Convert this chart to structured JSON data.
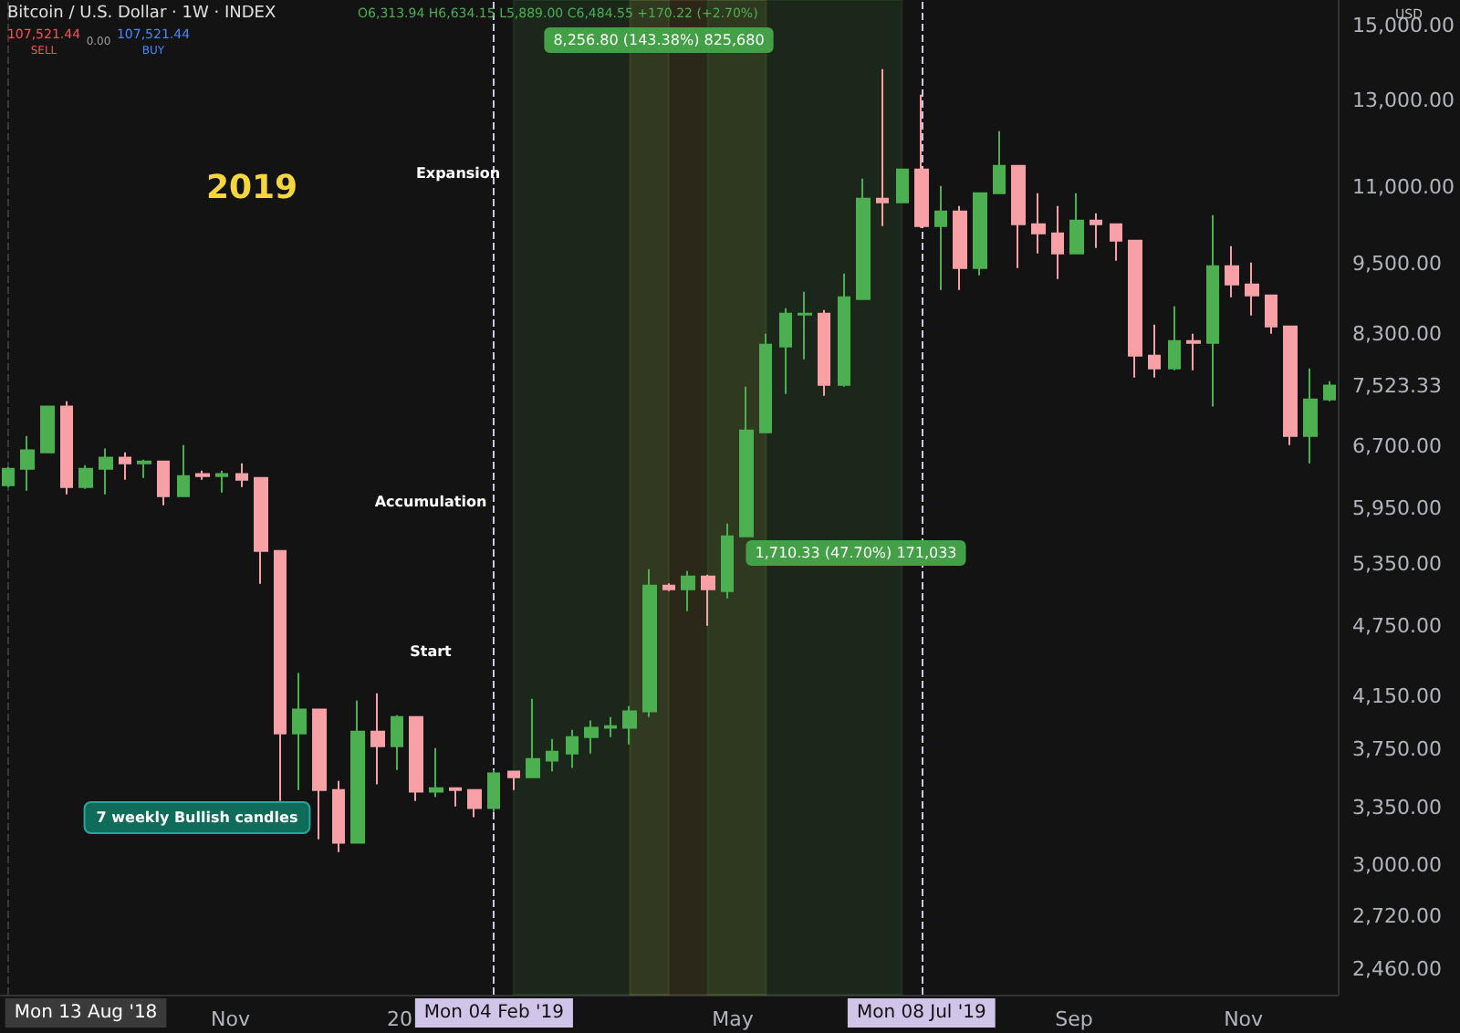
{
  "chart_data": {
    "type": "candlestick",
    "title": "Bitcoin / U.S. Dollar · 1W · INDEX",
    "subtitle": "O6,313.94 H6,634.15 L5,889.00 C6,484.55 +170.22 (+2.70%)",
    "annotations": [
      "2019",
      "Expansion",
      "Accumulation",
      "Start",
      "8,256.80 (143.38%) 825,680",
      "1,710.33 (47.70%) 171,033",
      "7 weekly Bullish candles",
      "107,521.44",
      "SELL",
      "0.00",
      "107,521.44",
      "BUY",
      "USD"
    ],
    "x": [
      "2018-08-13",
      "2018-08-20",
      "2018-08-27",
      "2018-09-03",
      "2018-09-10",
      "2018-09-17",
      "2018-09-24",
      "2018-10-01",
      "2018-10-08",
      "2018-10-15",
      "2018-10-22",
      "2018-10-29",
      "2018-11-05",
      "2018-11-12",
      "2018-11-19",
      "2018-11-26",
      "2018-12-03",
      "2018-12-10",
      "2018-12-17",
      "2018-12-24",
      "2018-12-31",
      "2019-01-07",
      "2019-01-14",
      "2019-01-21",
      "2019-01-28",
      "2019-02-04",
      "2019-02-11",
      "2019-02-18",
      "2019-02-25",
      "2019-03-04",
      "2019-03-11",
      "2019-03-18",
      "2019-03-25",
      "2019-04-01",
      "2019-04-08",
      "2019-04-15",
      "2019-04-22",
      "2019-04-29",
      "2019-05-06",
      "2019-05-13",
      "2019-05-20",
      "2019-05-27",
      "2019-06-03",
      "2019-06-10",
      "2019-06-17",
      "2019-06-24",
      "2019-07-01",
      "2019-07-08",
      "2019-07-15",
      "2019-07-22",
      "2019-07-29",
      "2019-08-05",
      "2019-08-12",
      "2019-08-19",
      "2019-08-26",
      "2019-09-02",
      "2019-09-09",
      "2019-09-16",
      "2019-09-23",
      "2019-09-30",
      "2019-10-07",
      "2019-10-14",
      "2019-10-21",
      "2019-10-28",
      "2019-11-04",
      "2019-11-11",
      "2019-11-18",
      "2019-11-25",
      "2019-12-02"
    ],
    "ohlc": [
      [
        6216,
        6438,
        6195,
        6415
      ],
      [
        6415,
        6832,
        6151,
        6645
      ],
      [
        6621,
        7226,
        6621,
        7226
      ],
      [
        7226,
        7302,
        6109,
        6195
      ],
      [
        6195,
        6460,
        6173,
        6415
      ],
      [
        6415,
        6668,
        6109,
        6552
      ],
      [
        6552,
        6621,
        6282,
        6483
      ],
      [
        6483,
        6529,
        6304,
        6506
      ],
      [
        6506,
        6506,
        5982,
        6088
      ],
      [
        6088,
        6714,
        6088,
        6326
      ],
      [
        6349,
        6393,
        6282,
        6326
      ],
      [
        6326,
        6393,
        6130,
        6349
      ],
      [
        6349,
        6483,
        6195,
        6282
      ],
      [
        6304,
        6304,
        5147,
        5481
      ],
      [
        5481,
        5481,
        3395,
        3864
      ],
      [
        3864,
        4337,
        3467,
        4044
      ],
      [
        4044,
        4044,
        3154,
        3467
      ],
      [
        3467,
        3528,
        3078,
        3133
      ],
      [
        3133,
        4115,
        3133,
        3877
      ],
      [
        3877,
        4173,
        3504,
        3770
      ],
      [
        3770,
        4001,
        3603,
        3987
      ],
      [
        3987,
        3987,
        3395,
        3455
      ],
      [
        3455,
        3757,
        3419,
        3479
      ],
      [
        3479,
        3479,
        3359,
        3467
      ],
      [
        3467,
        3467,
        3290,
        3348
      ],
      [
        3348,
        3603,
        3324,
        3578
      ],
      [
        3591,
        3591,
        3467,
        3553
      ],
      [
        3553,
        4129,
        3553,
        3679
      ],
      [
        3667,
        3823,
        3591,
        3731
      ],
      [
        3718,
        3891,
        3616,
        3836
      ],
      [
        3836,
        3960,
        3718,
        3905
      ],
      [
        3905,
        3987,
        3836,
        3918
      ],
      [
        3905,
        4072,
        3783,
        4030
      ],
      [
        4030,
        5292,
        3987,
        5129
      ],
      [
        5129,
        5150,
        5075,
        5093
      ],
      [
        5093,
        5274,
        4884,
        5219
      ],
      [
        5219,
        5238,
        4749,
        5093
      ],
      [
        5075,
        5776,
        5005,
        5636
      ],
      [
        5636,
        7508,
        5636,
        6903
      ],
      [
        6880,
        8310,
        6880,
        8137
      ],
      [
        8109,
        8727,
        7404,
        8635
      ],
      [
        8620,
        9005,
        7913,
        8635
      ],
      [
        8635,
        8696,
        7378,
        7534
      ],
      [
        7534,
        9326,
        7508,
        8912
      ],
      [
        8880,
        11185,
        8880,
        10763
      ],
      [
        10763,
        13796,
        10213,
        10688
      ],
      [
        10688,
        11383,
        10688,
        11383
      ],
      [
        11383,
        13137,
        10178,
        10213
      ],
      [
        10213,
        11031,
        9038,
        10503
      ],
      [
        10503,
        10613,
        9038,
        9424
      ],
      [
        9424,
        10877,
        9294,
        10877
      ],
      [
        10877,
        12250,
        10877,
        11462
      ],
      [
        11462,
        11462,
        9424,
        10249
      ],
      [
        10249,
        10877,
        9692,
        10071
      ],
      [
        10071,
        10613,
        9229,
        9692
      ],
      [
        9692,
        10877,
        9692,
        10321
      ],
      [
        10321,
        10466,
        9794,
        10249
      ],
      [
        10249,
        10249,
        9557,
        9932
      ],
      [
        9932,
        9932,
        7640,
        7968
      ],
      [
        7968,
        8455,
        7640,
        7775
      ],
      [
        7775,
        8757,
        7748,
        8194
      ],
      [
        8194,
        8310,
        7748,
        8165
      ],
      [
        8165,
        10430,
        7226,
        9458
      ],
      [
        9458,
        9828,
        8912,
        9133
      ],
      [
        9133,
        9524,
        8605,
        8943
      ],
      [
        8943,
        8943,
        8310,
        8426
      ],
      [
        8426,
        8426,
        6714,
        6832
      ],
      [
        6832,
        7775,
        6483,
        7327
      ],
      [
        7327,
        7587,
        7300,
        7523.33
      ]
    ],
    "colors": [
      "#4caf50",
      "#4caf50",
      "#4caf50",
      "#f7a1a7",
      "#4caf50",
      "#4caf50",
      "#f7a1a7",
      "#4caf50",
      "#f7a1a7",
      "#4caf50",
      "#f7a1a7",
      "#4caf50",
      "#f7a1a7",
      "#f7a1a7",
      "#f7a1a7",
      "#4caf50",
      "#f7a1a7",
      "#f7a1a7",
      "#4caf50",
      "#f7a1a7",
      "#4caf50",
      "#f7a1a7",
      "#4caf50",
      "#f7a1a7",
      "#f7a1a7",
      "#4caf50",
      "#f7a1a7",
      "#4caf50",
      "#4caf50",
      "#4caf50",
      "#4caf50",
      "#4caf50",
      "#4caf50",
      "#4caf50",
      "#f7a1a7",
      "#4caf50",
      "#f7a1a7",
      "#4caf50",
      "#4caf50",
      "#4caf50",
      "#4caf50",
      "#4caf50",
      "#f7a1a7",
      "#4caf50",
      "#4caf50",
      "#f7a1a7",
      "#4caf50",
      "#f7a1a7",
      "#4caf50",
      "#f7a1a7",
      "#4caf50",
      "#4caf50",
      "#f7a1a7",
      "#f7a1a7",
      "#f7a1a7",
      "#4caf50",
      "#f7a1a7",
      "#f7a1a7",
      "#f7a1a7",
      "#f7a1a7",
      "#4caf50",
      "#f7a1a7",
      "#4caf50",
      "#f7a1a7",
      "#f7a1a7",
      "#f7a1a7",
      "#f7a1a7",
      "#4caf50",
      "#4caf50"
    ],
    "xlim": [
      "2018-08-10",
      "2019-12-05"
    ],
    "xticks": [
      {
        "value": "2018-11-01",
        "label": "Nov"
      },
      {
        "value": "2019-01-01",
        "label": "20"
      },
      {
        "value": "2019-05-01",
        "label": "May"
      },
      {
        "value": "2019-09-01",
        "label": "Sep"
      },
      {
        "value": "2019-11-01",
        "label": "Nov"
      }
    ],
    "ylim": [
      2342,
      15750
    ],
    "log": true,
    "yticks": [
      {
        "value": 2460,
        "label": "2,460.00"
      },
      {
        "value": 2720,
        "label": "2,720.00"
      },
      {
        "value": 3000,
        "label": "3,000.00"
      },
      {
        "value": 3350,
        "label": "3,350.00"
      },
      {
        "value": 3750,
        "label": "3,750.00"
      },
      {
        "value": 4150,
        "label": "4,150.00"
      },
      {
        "value": 4750,
        "label": "4,750.00"
      },
      {
        "value": 5350,
        "label": "5,350.00"
      },
      {
        "value": 5950,
        "label": "5,950.00"
      },
      {
        "value": 6700,
        "label": "6,700.00"
      },
      {
        "value": 7523.33,
        "label": "7,523.33"
      },
      {
        "value": 8300,
        "label": "8,300.00"
      },
      {
        "value": 9500,
        "label": "9,500.00"
      },
      {
        "value": 11000,
        "label": "11,000.00"
      },
      {
        "value": 13000,
        "label": "13,000.00"
      },
      {
        "value": 15000,
        "label": "15,000.00"
      }
    ],
    "ref_lines": [
      {
        "axis": "x",
        "value": "2018-08-13",
        "label": "Mon 13 Aug '18",
        "color": "#3a3a3a"
      },
      {
        "axis": "x",
        "value": "2019-02-04",
        "label": "Mon 04 Feb '19",
        "color": "#d1c4e9"
      },
      {
        "axis": "x",
        "value": "2019-07-08",
        "label": "Mon 08 Jul '19",
        "color": "#d1c4e9"
      }
    ],
    "bands": [
      {
        "axis": "x",
        "from": "2019-02-11",
        "to": "2019-04-08",
        "color": "#4caf50"
      },
      {
        "axis": "x",
        "from": "2019-03-25",
        "to": "2019-05-13",
        "color": "#d4b84a"
      },
      {
        "axis": "x",
        "from": "2019-04-22",
        "to": "2019-07-01",
        "color": "#4caf50"
      }
    ],
    "grid": false
  }
}
